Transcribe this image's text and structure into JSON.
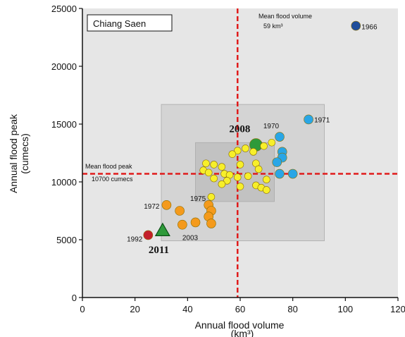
{
  "chart_data": {
    "type": "scatter",
    "station_label": "Chiang Saen",
    "xlabel": "Annual flood volume",
    "xlabel_unit": "(km³)",
    "ylabel": "Annual flood peak",
    "ylabel_unit": "(cumecs)",
    "xlim": [
      0,
      120
    ],
    "ylim": [
      0,
      25000
    ],
    "x_ticks": [
      "0",
      "20",
      "40",
      "60",
      "80",
      "100",
      "120"
    ],
    "y_ticks": [
      "0",
      "5000",
      "10000",
      "15000",
      "20000",
      "25000"
    ],
    "mean_volume": {
      "value": 59,
      "label_line1": "Mean flood volume",
      "label_line2": "59 km³"
    },
    "mean_peak": {
      "value": 10700,
      "label_line1": "Mean flood peak",
      "label_line2": "10700 cumecs"
    },
    "boxes": [
      {
        "x0": 30,
        "x1": 92,
        "y0": 4900,
        "y1": 16700
      },
      {
        "x0": 43,
        "x1": 73,
        "y0": 8300,
        "y1": 13400
      }
    ],
    "colors": {
      "dark_blue": "#1f4e9b",
      "light_blue": "#29a6e6",
      "yellow": "#f7ef2a",
      "orange": "#f49a1c",
      "green": "#2e9a3a",
      "red": "#c3202a",
      "mean_line": "#e01b1b",
      "outer_box": "#d4d4d4",
      "inner_box": "#c2c2c2",
      "plot_bg": "#e6e6e6"
    },
    "points": [
      {
        "x": 104,
        "y": 23500,
        "group": "dark_blue",
        "label": "1966"
      },
      {
        "x": 86,
        "y": 15400,
        "group": "light_blue",
        "label": "1971"
      },
      {
        "x": 75,
        "y": 13900,
        "group": "light_blue",
        "label": "1970"
      },
      {
        "x": 76,
        "y": 12600,
        "group": "light_blue"
      },
      {
        "x": 76,
        "y": 12100,
        "group": "light_blue"
      },
      {
        "x": 74,
        "y": 11700,
        "group": "light_blue"
      },
      {
        "x": 75,
        "y": 10700,
        "group": "light_blue"
      },
      {
        "x": 80,
        "y": 10700,
        "group": "light_blue"
      },
      {
        "x": 66,
        "y": 13200,
        "group": "green",
        "big": true,
        "label": "2008"
      },
      {
        "x": 62,
        "y": 12900,
        "group": "yellow"
      },
      {
        "x": 59,
        "y": 12700,
        "group": "yellow"
      },
      {
        "x": 65,
        "y": 12600,
        "group": "yellow"
      },
      {
        "x": 69,
        "y": 13100,
        "group": "yellow"
      },
      {
        "x": 72,
        "y": 13400,
        "group": "yellow"
      },
      {
        "x": 57,
        "y": 12400,
        "group": "yellow"
      },
      {
        "x": 47,
        "y": 11600,
        "group": "yellow"
      },
      {
        "x": 50,
        "y": 11500,
        "group": "yellow"
      },
      {
        "x": 53,
        "y": 11300,
        "group": "yellow"
      },
      {
        "x": 60,
        "y": 11500,
        "group": "yellow"
      },
      {
        "x": 66,
        "y": 11600,
        "group": "yellow"
      },
      {
        "x": 67,
        "y": 11100,
        "group": "yellow"
      },
      {
        "x": 46,
        "y": 11000,
        "group": "yellow"
      },
      {
        "x": 48,
        "y": 10800,
        "group": "yellow"
      },
      {
        "x": 54,
        "y": 10700,
        "group": "yellow"
      },
      {
        "x": 56,
        "y": 10600,
        "group": "yellow"
      },
      {
        "x": 59,
        "y": 10400,
        "group": "yellow"
      },
      {
        "x": 63,
        "y": 10500,
        "group": "yellow"
      },
      {
        "x": 50,
        "y": 10300,
        "group": "yellow"
      },
      {
        "x": 55,
        "y": 10100,
        "group": "yellow"
      },
      {
        "x": 53,
        "y": 9800,
        "group": "yellow"
      },
      {
        "x": 60,
        "y": 9600,
        "group": "yellow"
      },
      {
        "x": 66,
        "y": 9700,
        "group": "yellow"
      },
      {
        "x": 70,
        "y": 10200,
        "group": "yellow"
      },
      {
        "x": 68,
        "y": 9500,
        "group": "yellow"
      },
      {
        "x": 70,
        "y": 9300,
        "group": "yellow"
      },
      {
        "x": 49,
        "y": 8700,
        "group": "yellow"
      },
      {
        "x": 32,
        "y": 8000,
        "group": "orange",
        "label": "1972"
      },
      {
        "x": 48,
        "y": 8000,
        "group": "orange",
        "label": "1975"
      },
      {
        "x": 37,
        "y": 7500,
        "group": "orange"
      },
      {
        "x": 49,
        "y": 7500,
        "group": "orange"
      },
      {
        "x": 48,
        "y": 7000,
        "group": "orange"
      },
      {
        "x": 43,
        "y": 6500,
        "group": "orange"
      },
      {
        "x": 38,
        "y": 6300,
        "group": "orange",
        "label": "2003"
      },
      {
        "x": 49,
        "y": 6400,
        "group": "orange"
      },
      {
        "x": 25,
        "y": 5400,
        "group": "red",
        "label": "1992"
      },
      {
        "x": 30.5,
        "y": 5800,
        "group": "green",
        "shape": "triangle",
        "label": "2011"
      }
    ]
  }
}
